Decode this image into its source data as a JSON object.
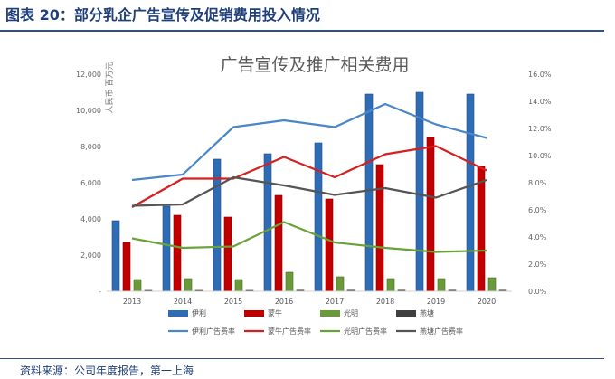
{
  "figure_title": "图表 20：部分乳企广告宣传及促销费用投入情况",
  "source_note": "资料来源：公司年度报告，第一上海",
  "chart_data": {
    "type": "bar",
    "title": "广告宣传及推广相关费用",
    "ylabel": "人民币 百万元",
    "ylabel_right": "",
    "categories": [
      "2013",
      "2014",
      "2015",
      "2016",
      "2017",
      "2018",
      "2019",
      "2020"
    ],
    "ylim": [
      0,
      12000
    ],
    "y_ticks": [
      "-",
      "2,000",
      "4,000",
      "6,000",
      "8,000",
      "10,000",
      "12,000"
    ],
    "y2lim": [
      0,
      16
    ],
    "y2_ticks": [
      "0.0%",
      "2.0%",
      "4.0%",
      "6.0%",
      "8.0%",
      "10.0%",
      "12.0%",
      "14.0%",
      "16.0%"
    ],
    "grid": false,
    "legend_position": "bottom",
    "bar_series": [
      {
        "name": "伊利",
        "color": "#2e6db5",
        "values": [
          3900,
          4700,
          7300,
          7600,
          8200,
          10900,
          11000,
          10900
        ]
      },
      {
        "name": "蒙牛",
        "color": "#c00000",
        "values": [
          2700,
          4200,
          4100,
          5300,
          5100,
          7000,
          8500,
          6900
        ]
      },
      {
        "name": "光明",
        "color": "#6a9a3a",
        "values": [
          650,
          700,
          650,
          1050,
          800,
          700,
          700,
          750
        ]
      },
      {
        "name": "燕塘",
        "color": "#404040",
        "values": [
          50,
          50,
          50,
          60,
          60,
          60,
          60,
          60
        ]
      }
    ],
    "line_series": [
      {
        "name": "伊利广告费率",
        "color": "#4a86c8",
        "values": [
          8.2,
          8.6,
          12.1,
          12.6,
          12.1,
          13.8,
          12.3,
          11.3
        ]
      },
      {
        "name": "蒙牛广告费率",
        "color": "#d62020",
        "values": [
          6.2,
          8.3,
          8.3,
          9.9,
          8.4,
          10.1,
          10.7,
          8.9
        ]
      },
      {
        "name": "光明广告费率",
        "color": "#6aa23a",
        "values": [
          3.9,
          3.2,
          3.3,
          5.1,
          3.6,
          3.2,
          2.9,
          3.0
        ]
      },
      {
        "name": "燕塘广告费率",
        "color": "#555555",
        "values": [
          6.3,
          6.4,
          8.4,
          7.8,
          7.1,
          7.6,
          6.9,
          8.2
        ]
      }
    ]
  }
}
